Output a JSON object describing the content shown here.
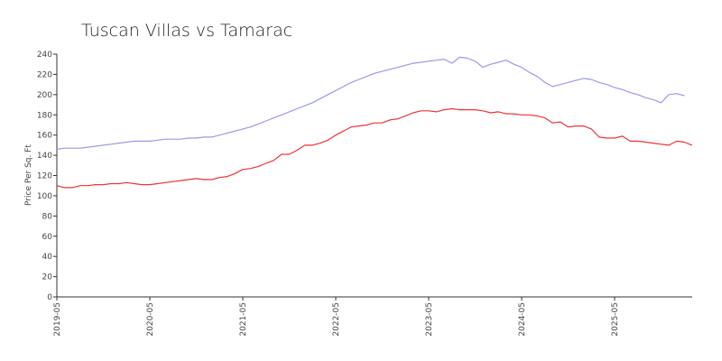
{
  "chart_data": {
    "type": "line",
    "title": "Tuscan Villas vs Tamarac",
    "ylabel": "Price Per Sq. Ft",
    "xlabel": "",
    "ylim": [
      0,
      240
    ],
    "yticks": [
      0,
      20,
      40,
      60,
      80,
      100,
      120,
      140,
      160,
      180,
      200,
      220,
      240
    ],
    "x_start": "2019-05",
    "x_end": "2026-02",
    "xticks": [
      "2019-05",
      "2020-05",
      "2021-05",
      "2022-05",
      "2023-05",
      "2024-05",
      "2025-05"
    ],
    "grid": false,
    "legend": "none",
    "series": [
      {
        "color": "#9999ee",
        "points": [
          [
            "2019-05",
            146
          ],
          [
            "2019-06",
            147
          ],
          [
            "2019-07",
            147
          ],
          [
            "2019-08",
            147
          ],
          [
            "2019-09",
            148
          ],
          [
            "2019-10",
            149
          ],
          [
            "2019-11",
            150
          ],
          [
            "2019-12",
            151
          ],
          [
            "2020-01",
            152
          ],
          [
            "2020-02",
            153
          ],
          [
            "2020-03",
            154
          ],
          [
            "2020-04",
            154
          ],
          [
            "2020-05",
            154
          ],
          [
            "2020-06",
            155
          ],
          [
            "2020-07",
            156
          ],
          [
            "2020-08",
            156
          ],
          [
            "2020-09",
            156
          ],
          [
            "2020-10",
            157
          ],
          [
            "2020-11",
            157
          ],
          [
            "2020-12",
            158
          ],
          [
            "2021-01",
            158
          ],
          [
            "2021-02",
            160
          ],
          [
            "2021-03",
            162
          ],
          [
            "2021-04",
            164
          ],
          [
            "2021-05",
            166
          ],
          [
            "2021-06",
            168
          ],
          [
            "2021-07",
            171
          ],
          [
            "2021-08",
            174
          ],
          [
            "2021-09",
            177
          ],
          [
            "2021-10",
            180
          ],
          [
            "2021-11",
            183
          ],
          [
            "2021-12",
            186
          ],
          [
            "2022-01",
            189
          ],
          [
            "2022-02",
            192
          ],
          [
            "2022-03",
            196
          ],
          [
            "2022-04",
            200
          ],
          [
            "2022-05",
            204
          ],
          [
            "2022-06",
            208
          ],
          [
            "2022-07",
            212
          ],
          [
            "2022-08",
            215
          ],
          [
            "2022-09",
            218
          ],
          [
            "2022-10",
            221
          ],
          [
            "2022-11",
            223
          ],
          [
            "2022-12",
            225
          ],
          [
            "2023-01",
            227
          ],
          [
            "2023-02",
            229
          ],
          [
            "2023-03",
            231
          ],
          [
            "2023-04",
            232
          ],
          [
            "2023-05",
            233
          ],
          [
            "2023-06",
            234
          ],
          [
            "2023-07",
            235
          ],
          [
            "2023-08",
            231
          ],
          [
            "2023-09",
            237
          ],
          [
            "2023-10",
            236
          ],
          [
            "2023-11",
            233
          ],
          [
            "2023-12",
            227
          ],
          [
            "2024-01",
            230
          ],
          [
            "2024-02",
            232
          ],
          [
            "2024-03",
            234
          ],
          [
            "2024-04",
            230
          ],
          [
            "2024-05",
            227
          ],
          [
            "2024-06",
            222
          ],
          [
            "2024-07",
            218
          ],
          [
            "2024-08",
            212
          ],
          [
            "2024-09",
            208
          ],
          [
            "2024-10",
            210
          ],
          [
            "2024-11",
            212
          ],
          [
            "2024-12",
            214
          ],
          [
            "2025-01",
            216
          ],
          [
            "2025-02",
            215
          ],
          [
            "2025-03",
            212
          ],
          [
            "2025-04",
            210
          ],
          [
            "2025-05",
            207
          ],
          [
            "2025-06",
            205
          ],
          [
            "2025-07",
            202
          ],
          [
            "2025-08",
            200
          ],
          [
            "2025-09",
            197
          ],
          [
            "2025-10",
            195
          ],
          [
            "2025-11",
            192
          ],
          [
            "2025-12",
            200
          ],
          [
            "2026-01",
            201
          ],
          [
            "2026-02",
            199
          ]
        ]
      },
      {
        "color": "#ee3333",
        "points": [
          [
            "2019-05",
            110
          ],
          [
            "2019-06",
            108
          ],
          [
            "2019-07",
            108
          ],
          [
            "2019-08",
            110
          ],
          [
            "2019-09",
            110
          ],
          [
            "2019-10",
            111
          ],
          [
            "2019-11",
            111
          ],
          [
            "2019-12",
            112
          ],
          [
            "2020-01",
            112
          ],
          [
            "2020-02",
            113
          ],
          [
            "2020-03",
            112
          ],
          [
            "2020-04",
            111
          ],
          [
            "2020-05",
            111
          ],
          [
            "2020-06",
            112
          ],
          [
            "2020-07",
            113
          ],
          [
            "2020-08",
            114
          ],
          [
            "2020-09",
            115
          ],
          [
            "2020-10",
            116
          ],
          [
            "2020-11",
            117
          ],
          [
            "2020-12",
            116
          ],
          [
            "2021-01",
            116
          ],
          [
            "2021-02",
            118
          ],
          [
            "2021-03",
            119
          ],
          [
            "2021-04",
            122
          ],
          [
            "2021-05",
            126
          ],
          [
            "2021-06",
            127
          ],
          [
            "2021-07",
            129
          ],
          [
            "2021-08",
            132
          ],
          [
            "2021-09",
            135
          ],
          [
            "2021-10",
            141
          ],
          [
            "2021-11",
            141
          ],
          [
            "2021-12",
            145
          ],
          [
            "2022-01",
            150
          ],
          [
            "2022-02",
            150
          ],
          [
            "2022-03",
            152
          ],
          [
            "2022-04",
            155
          ],
          [
            "2022-05",
            160
          ],
          [
            "2022-06",
            164
          ],
          [
            "2022-07",
            168
          ],
          [
            "2022-08",
            169
          ],
          [
            "2022-09",
            170
          ],
          [
            "2022-10",
            172
          ],
          [
            "2022-11",
            172
          ],
          [
            "2022-12",
            175
          ],
          [
            "2023-01",
            176
          ],
          [
            "2023-02",
            179
          ],
          [
            "2023-03",
            182
          ],
          [
            "2023-04",
            184
          ],
          [
            "2023-05",
            184
          ],
          [
            "2023-06",
            183
          ],
          [
            "2023-07",
            185
          ],
          [
            "2023-08",
            186
          ],
          [
            "2023-09",
            185
          ],
          [
            "2023-10",
            185
          ],
          [
            "2023-11",
            185
          ],
          [
            "2023-12",
            184
          ],
          [
            "2024-01",
            182
          ],
          [
            "2024-02",
            183
          ],
          [
            "2024-03",
            181
          ],
          [
            "2024-04",
            181
          ],
          [
            "2024-05",
            180
          ],
          [
            "2024-06",
            180
          ],
          [
            "2024-07",
            179
          ],
          [
            "2024-08",
            177
          ],
          [
            "2024-09",
            172
          ],
          [
            "2024-10",
            173
          ],
          [
            "2024-11",
            168
          ],
          [
            "2024-12",
            169
          ],
          [
            "2025-01",
            169
          ],
          [
            "2025-02",
            166
          ],
          [
            "2025-03",
            158
          ],
          [
            "2025-04",
            157
          ],
          [
            "2025-05",
            157
          ],
          [
            "2025-06",
            159
          ],
          [
            "2025-07",
            154
          ],
          [
            "2025-08",
            154
          ],
          [
            "2025-09",
            153
          ],
          [
            "2025-10",
            152
          ],
          [
            "2025-11",
            151
          ],
          [
            "2025-12",
            150
          ],
          [
            "2026-01",
            154
          ],
          [
            "2026-02",
            153
          ],
          [
            "2026-03",
            150
          ]
        ]
      }
    ]
  }
}
